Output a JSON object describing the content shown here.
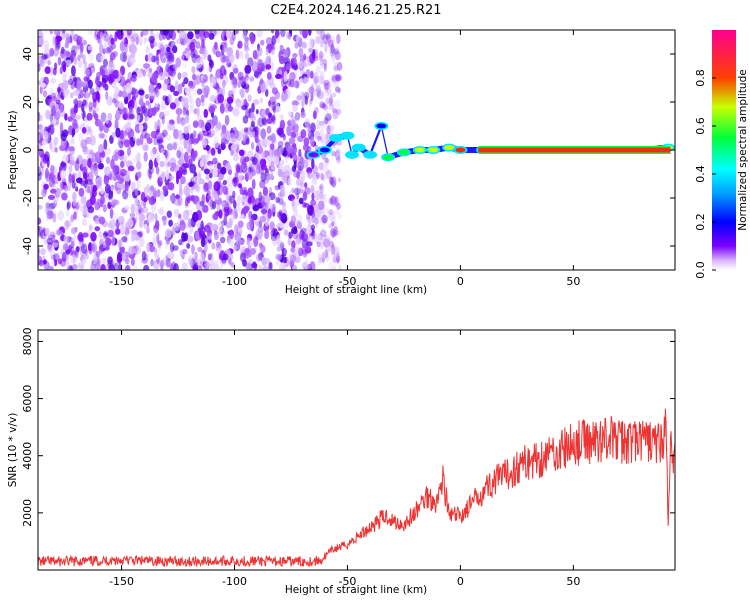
{
  "title": "C2E4.2024.146.21.25.R21",
  "chart_data": [
    {
      "type": "heatmap",
      "xlabel": "Height of straight line (km)",
      "ylabel": "Frequency (Hz)",
      "xlim": [
        -187,
        95
      ],
      "ylim": [
        -50,
        50
      ],
      "xticks": [
        -150,
        -100,
        -50,
        0,
        50
      ],
      "yticks": [
        -40,
        -20,
        0,
        20,
        40
      ],
      "colorbar": {
        "label": "Normalized spectral amplitude",
        "range": [
          0,
          1
        ],
        "ticks": [
          0.0,
          0.2,
          0.4,
          0.6,
          0.8
        ],
        "colormap": [
          "#ffffff",
          "#7a00ff",
          "#0000ff",
          "#00e5ff",
          "#00ff3c",
          "#c8ff00",
          "#ff2a00",
          "#ff0080"
        ]
      },
      "noise_region_x": [
        -187,
        -60
      ],
      "signal_track": [
        {
          "x": -65,
          "f": -2,
          "amp": 0.2
        },
        {
          "x": -60,
          "f": 0,
          "amp": 0.3
        },
        {
          "x": -55,
          "f": 5,
          "amp": 0.4
        },
        {
          "x": -50,
          "f": 6,
          "amp": 0.45
        },
        {
          "x": -48,
          "f": -2,
          "amp": 0.4
        },
        {
          "x": -45,
          "f": 1,
          "amp": 0.5
        },
        {
          "x": -40,
          "f": -2,
          "amp": 0.5
        },
        {
          "x": -35,
          "f": 10,
          "amp": 0.3
        },
        {
          "x": -32,
          "f": -3,
          "amp": 0.55
        },
        {
          "x": -25,
          "f": -1,
          "amp": 0.65
        },
        {
          "x": -18,
          "f": 0,
          "amp": 0.7
        },
        {
          "x": -12,
          "f": 0,
          "amp": 0.75
        },
        {
          "x": -5,
          "f": 1,
          "amp": 0.8
        },
        {
          "x": 0,
          "f": 0,
          "amp": 0.85
        },
        {
          "x": 10,
          "f": 0,
          "amp": 0.9
        },
        {
          "x": 30,
          "f": 0,
          "amp": 0.95
        },
        {
          "x": 60,
          "f": 0,
          "amp": 0.95
        },
        {
          "x": 80,
          "f": 0,
          "amp": 0.9
        },
        {
          "x": 92,
          "f": 1,
          "amp": 0.8
        }
      ]
    },
    {
      "type": "line",
      "xlabel": "Height of straight line (km)",
      "ylabel": "SNR (10 * v/v)",
      "xlim": [
        -187,
        95
      ],
      "ylim": [
        0,
        8400
      ],
      "xticks": [
        -150,
        -100,
        -50,
        0,
        50
      ],
      "yticks": [
        2000,
        4000,
        6000,
        8000
      ],
      "color": "#ee3333",
      "x": [
        -187,
        -175,
        -160,
        -150,
        -140,
        -120,
        -100,
        -80,
        -70,
        -62,
        -57,
        -50,
        -45,
        -40,
        -35,
        -32,
        -30,
        -25,
        -20,
        -15,
        -10,
        -8,
        -5,
        0,
        5,
        10,
        15,
        20,
        25,
        30,
        35,
        40,
        45,
        50,
        55,
        60,
        65,
        67,
        70,
        75,
        80,
        85,
        88,
        90,
        91,
        92,
        93,
        94,
        95
      ],
      "y": [
        300,
        300,
        320,
        350,
        320,
        300,
        320,
        300,
        300,
        320,
        700,
        900,
        1200,
        1500,
        1800,
        1900,
        1700,
        1600,
        2000,
        2600,
        2400,
        3300,
        1900,
        1900,
        2300,
        2800,
        3100,
        3300,
        3600,
        3800,
        3900,
        4100,
        4200,
        4400,
        4500,
        4500,
        4700,
        4600,
        4500,
        4500,
        4500,
        4500,
        4400,
        4700,
        5000,
        1500,
        4600,
        3600,
        4500
      ]
    }
  ]
}
